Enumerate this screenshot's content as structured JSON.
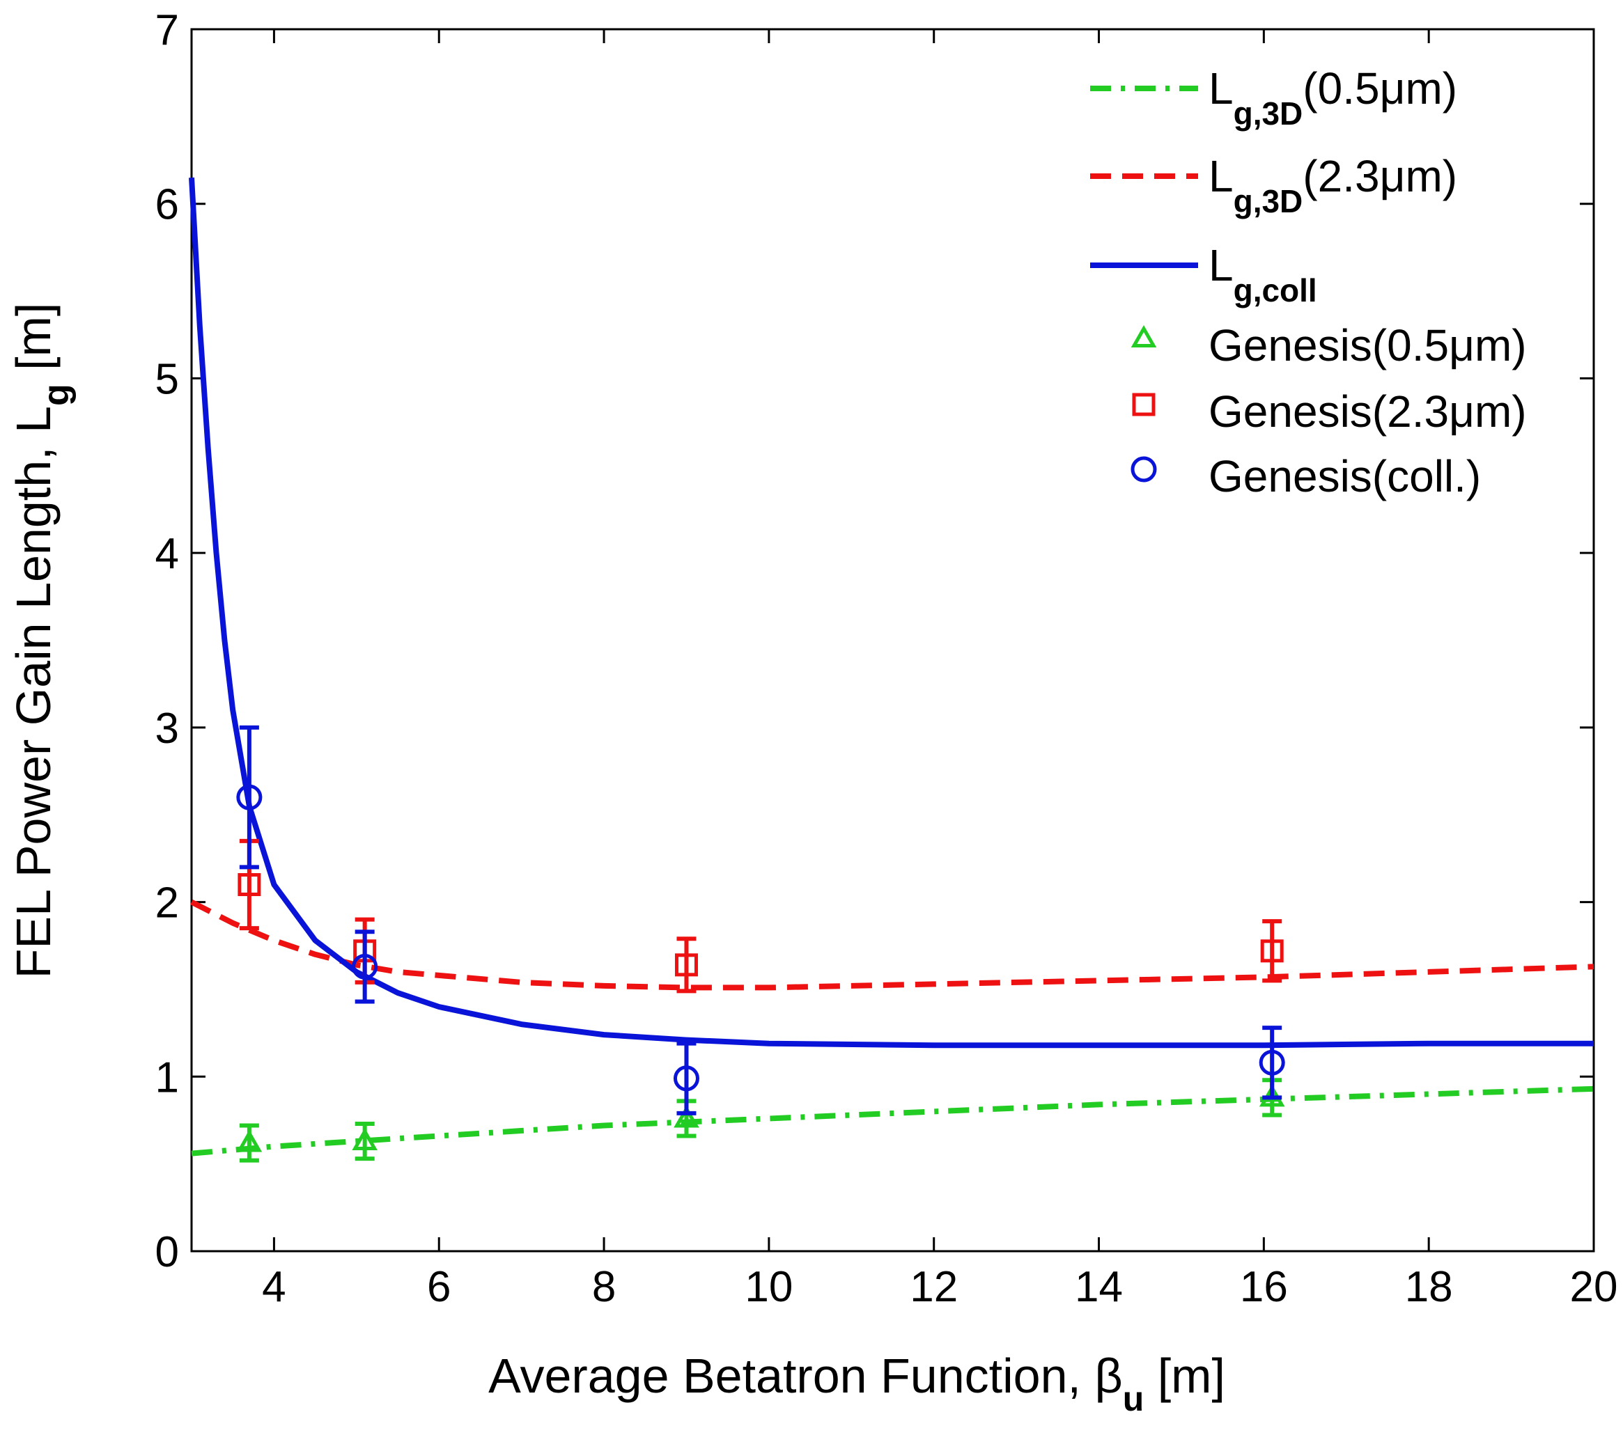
{
  "chart_data": {
    "type": "line",
    "title": "",
    "xlabel": {
      "main": "Average Betatron Function, ",
      "sym": "β",
      "sub": "u",
      "unit": " [m]"
    },
    "ylabel": {
      "main": "FEL Power Gain Length, L",
      "sub": "g",
      "unit": " [m]"
    },
    "xlim": [
      3,
      20
    ],
    "ylim": [
      0,
      7
    ],
    "xticks": [
      4,
      6,
      8,
      10,
      12,
      14,
      16,
      18,
      20
    ],
    "yticks": [
      0,
      1,
      2,
      3,
      4,
      5,
      6,
      7
    ],
    "grid": false,
    "legend_position": "top-right",
    "colors": {
      "green": "#22cc22",
      "red": "#ee1111",
      "blue": "#0a14d8"
    },
    "series": [
      {
        "name": "Lg,3D(0.5μm)",
        "legend": {
          "main": "L",
          "sub": "g,3D",
          "suffix": "(0.5μm)"
        },
        "style": "dashdot",
        "color": "#22cc22",
        "x": [
          3,
          4,
          5,
          6,
          8,
          10,
          12,
          14,
          16,
          18,
          20
        ],
        "y": [
          0.56,
          0.6,
          0.63,
          0.66,
          0.72,
          0.76,
          0.8,
          0.84,
          0.87,
          0.9,
          0.93
        ]
      },
      {
        "name": "Lg,3D(2.3μm)",
        "legend": {
          "main": "L",
          "sub": "g,3D",
          "suffix": "(2.3μm)"
        },
        "style": "dashed",
        "color": "#ee1111",
        "x": [
          3,
          3.5,
          4,
          4.5,
          5,
          5.5,
          6,
          7,
          8,
          9,
          10,
          12,
          14,
          16,
          18,
          20
        ],
        "y": [
          2.0,
          1.88,
          1.78,
          1.7,
          1.64,
          1.6,
          1.58,
          1.54,
          1.52,
          1.51,
          1.51,
          1.53,
          1.55,
          1.57,
          1.6,
          1.63
        ]
      },
      {
        "name": "Lg,coll",
        "legend": {
          "main": "L",
          "sub": "g,coll",
          "suffix": ""
        },
        "style": "solid",
        "color": "#0a14d8",
        "x": [
          3,
          3.1,
          3.2,
          3.3,
          3.4,
          3.5,
          3.7,
          4,
          4.5,
          5,
          5.5,
          6,
          7,
          8,
          9,
          10,
          12,
          14,
          16,
          18,
          20
        ],
        "y": [
          6.15,
          5.3,
          4.6,
          4.0,
          3.5,
          3.1,
          2.55,
          2.1,
          1.78,
          1.6,
          1.48,
          1.4,
          1.3,
          1.24,
          1.21,
          1.19,
          1.18,
          1.18,
          1.18,
          1.19,
          1.19
        ]
      },
      {
        "name": "Genesis(0.5μm)",
        "legend": {
          "main": "Genesis(0.5μm)",
          "sub": "",
          "suffix": ""
        },
        "marker": "triangle",
        "color": "#22cc22",
        "x": [
          3.7,
          5.1,
          9.0,
          16.1
        ],
        "y": [
          0.62,
          0.63,
          0.76,
          0.88
        ],
        "err": [
          0.1,
          0.1,
          0.1,
          0.1
        ]
      },
      {
        "name": "Genesis(2.3μm)",
        "legend": {
          "main": "Genesis(2.3μm)",
          "sub": "",
          "suffix": ""
        },
        "marker": "square",
        "color": "#ee1111",
        "x": [
          3.7,
          5.1,
          9.0,
          16.1
        ],
        "y": [
          2.1,
          1.72,
          1.64,
          1.72
        ],
        "err": [
          0.25,
          0.18,
          0.15,
          0.17
        ]
      },
      {
        "name": "Genesis(coll.)",
        "legend": {
          "main": "Genesis(coll.)",
          "sub": "",
          "suffix": ""
        },
        "marker": "circle",
        "color": "#0a14d8",
        "x": [
          3.7,
          5.1,
          9.0,
          16.1
        ],
        "y": [
          2.6,
          1.63,
          0.99,
          1.08
        ],
        "err": [
          0.4,
          0.2,
          0.2,
          0.2
        ]
      }
    ]
  }
}
